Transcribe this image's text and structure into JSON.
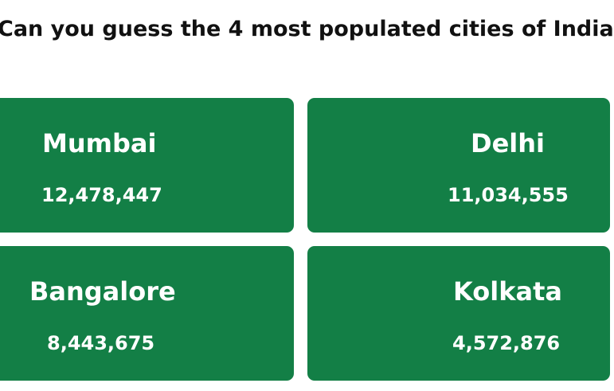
{
  "page": {
    "question": "Can you guess the 4 most populated cities of India"
  },
  "cities": [
    {
      "name": "Mumbai",
      "population": "12,478,447"
    },
    {
      "name": "Delhi",
      "population": "11,034,555"
    },
    {
      "name": "Bangalore",
      "population": "8,443,675"
    },
    {
      "name": "Kolkata",
      "population": "4,572,876"
    }
  ],
  "colors": {
    "card_background": "#137f46",
    "card_text": "#ffffff",
    "heading_text": "#111111"
  }
}
